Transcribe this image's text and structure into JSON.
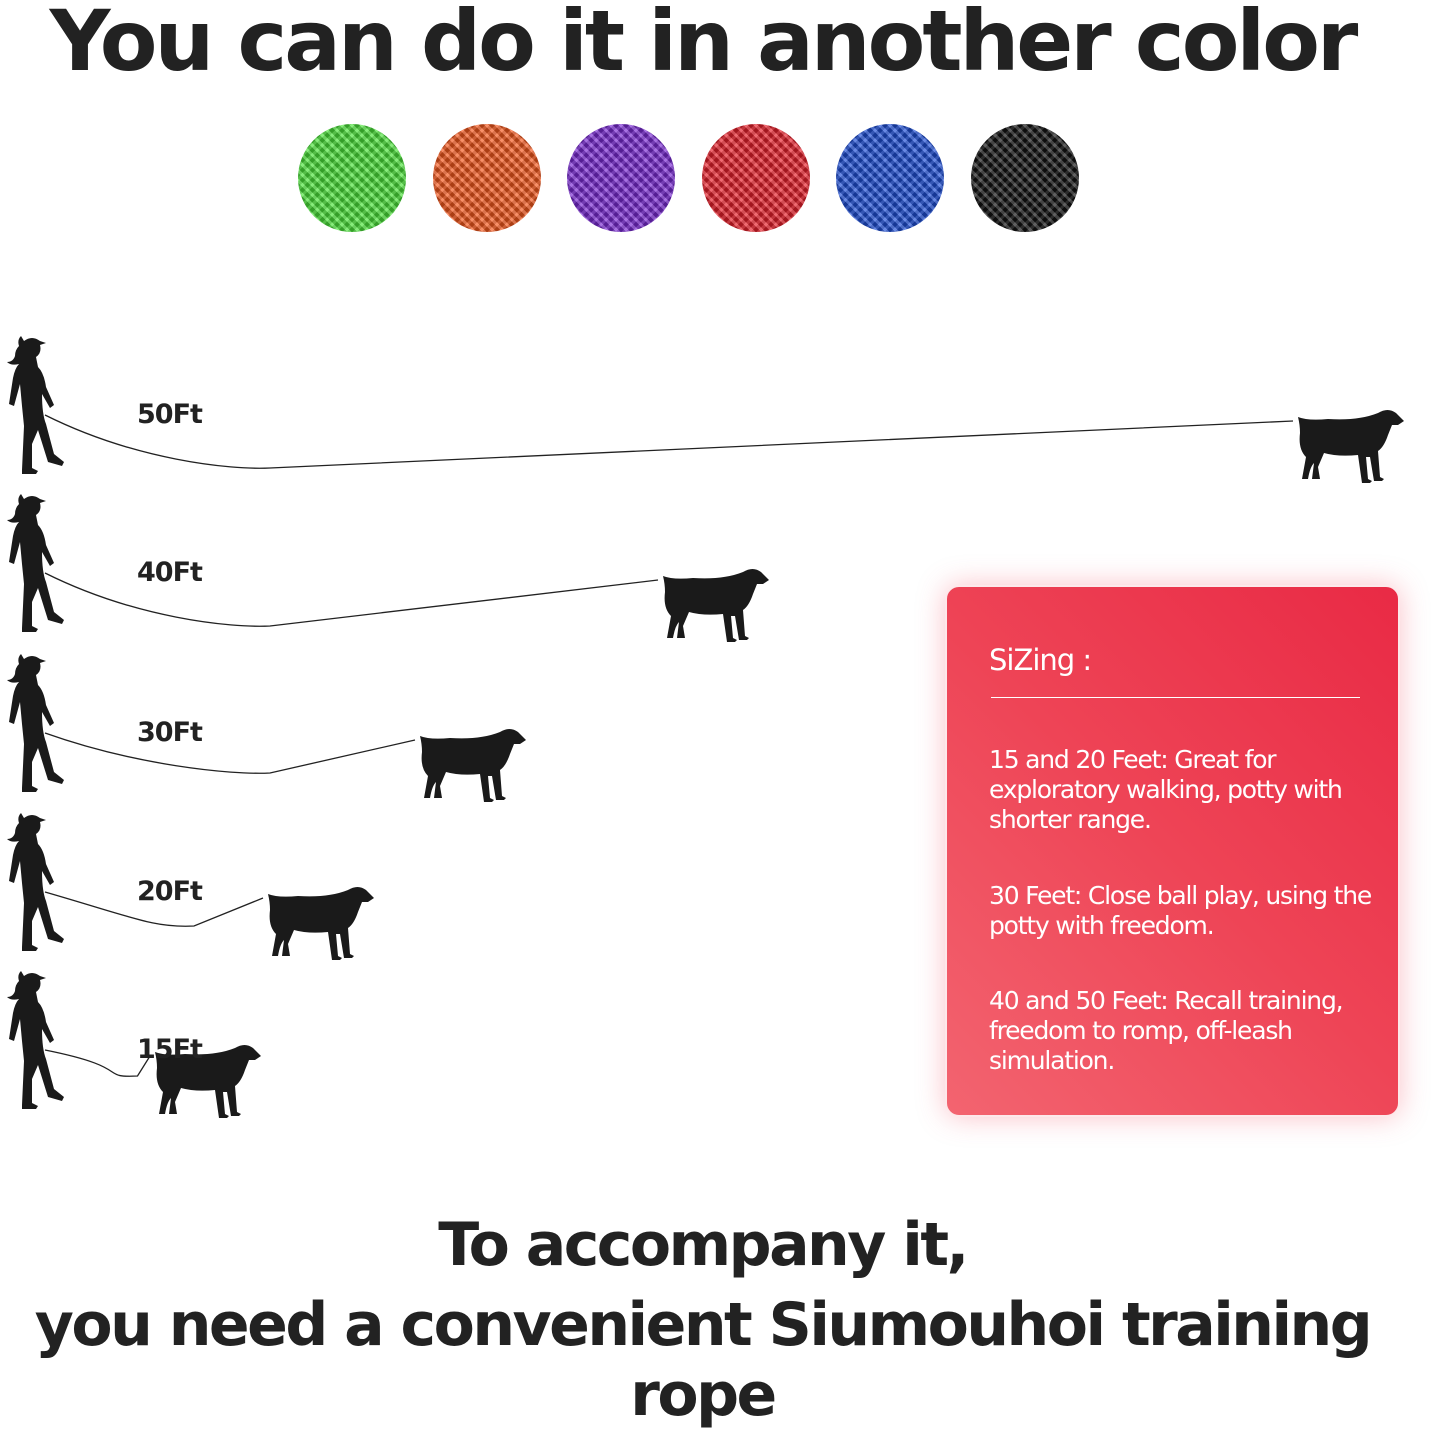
{
  "header": {
    "title": "You can do it in another color"
  },
  "colors": [
    {
      "name": "green",
      "hex": "#4be33a"
    },
    {
      "name": "orange",
      "hex": "#f5581d"
    },
    {
      "name": "purple",
      "hex": "#7a2ad4"
    },
    {
      "name": "red",
      "hex": "#e8202a"
    },
    {
      "name": "blue",
      "hex": "#1e4fd6"
    },
    {
      "name": "black",
      "hex": "#111111"
    }
  ],
  "lengths": [
    {
      "label": "50Ft",
      "feet": 50
    },
    {
      "label": "40Ft",
      "feet": 40
    },
    {
      "label": "30Ft",
      "feet": 30
    },
    {
      "label": "20Ft",
      "feet": 20
    },
    {
      "label": "15Ft",
      "feet": 15
    }
  ],
  "sizing": {
    "title": "SiZing :",
    "items": [
      "15 and 20 Feet: Great for exploratory walking, potty with shorter range.",
      "30 Feet: Close ball play, using the potty with freedom.",
      "40 and 50 Feet: Recall training, freedom to romp, off-leash simulation."
    ],
    "accent": "#ee3a50"
  },
  "footer": {
    "line1": "To accompany it,",
    "line2": "you need a convenient Siumouhoi training rope"
  }
}
